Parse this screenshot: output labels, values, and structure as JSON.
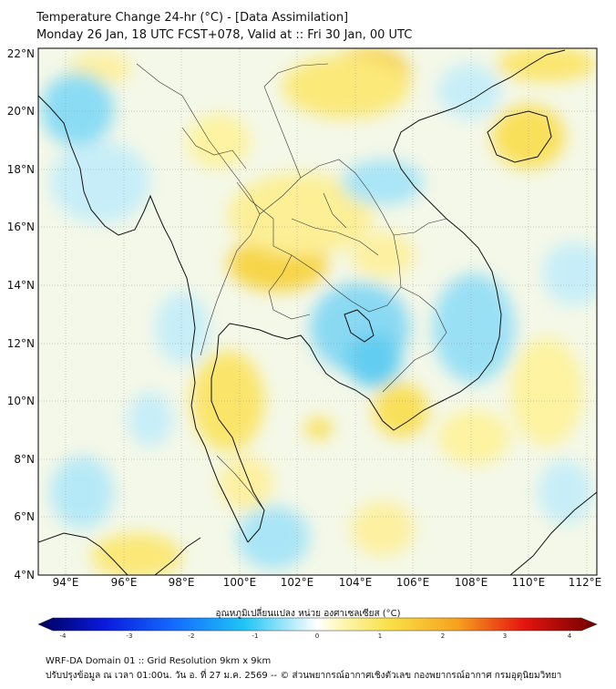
{
  "header": {
    "title": "Temperature Change 24-hr (°C) - [Data Assimilation]",
    "subtitle": "Monday 26 Jan, 18 UTC FCST+078, Valid at :: Fri 30 Jan, 00 UTC"
  },
  "map": {
    "lat_labels": [
      "22°N",
      "20°N",
      "18°N",
      "16°N",
      "14°N",
      "12°N",
      "10°N",
      "8°N",
      "6°N",
      "4°N"
    ],
    "lon_labels": [
      "94°E",
      "96°E",
      "98°E",
      "100°E",
      "102°E",
      "104°E",
      "106°E",
      "108°E",
      "110°E",
      "112°E"
    ],
    "lat_range": [
      4,
      22.2
    ],
    "lon_range": [
      93,
      112.3
    ]
  },
  "colorbar": {
    "title": "อุณหภูมิเปลี่ยนแปลง หน่วย องศาเซลเซียส (°C)",
    "ticks": [
      "-4",
      "-3",
      "-2",
      "-1",
      "0",
      "1",
      "2",
      "3",
      "4"
    ],
    "range": [
      -4,
      4
    ]
  },
  "footer": {
    "line1": "WRF-DA Domain 01 :: Grid Resolution 9km x 9km",
    "line2": "ปรับปรุงข้อมูล ณ เวลา 01:00น. วัน อ. ที่ 27 ม.ค. 2569 -- © ส่วนพยากรณ์อากาศเชิงตัวเลข กองพยากรณ์อากาศ กรมอุตุนิยมวิทยา"
  },
  "colors": {
    "neutral": "#f4f8e8",
    "warm_light": "#fdf3a0",
    "warm": "#f9e05a",
    "warm_strong": "#f5c23a",
    "cool_light": "#c7eef8",
    "cool": "#7fd8f3",
    "coast": "#111111",
    "border": "#333333"
  }
}
